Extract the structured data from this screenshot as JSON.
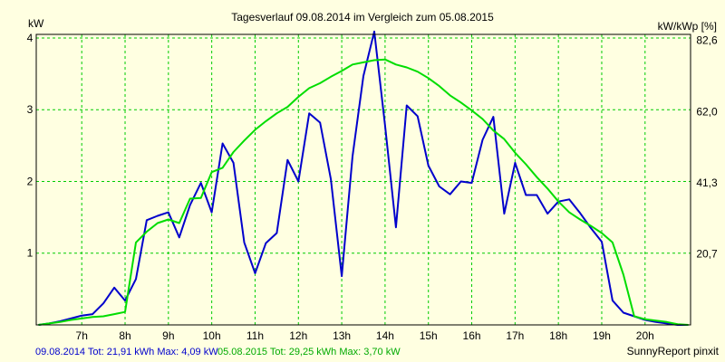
{
  "chart_data": {
    "type": "line",
    "title": "Tagesverlauf 09.08.2014 im Vergleich zum 05.08.2015",
    "ylabel_left": "kW",
    "ylabel_right": "kW/kWp [%]",
    "footer_right": "SunnyReport pinxit",
    "grid": true,
    "xlim": [
      5.95,
      21.05
    ],
    "ylim": [
      0,
      4.05
    ],
    "x_ticks": [
      7,
      8,
      9,
      10,
      11,
      12,
      13,
      14,
      15,
      16,
      17,
      18,
      19,
      20
    ],
    "x_tick_labels": [
      "7h",
      "8h",
      "9h",
      "10h",
      "11h",
      "12h",
      "13h",
      "14h",
      "15h",
      "16h",
      "17h",
      "18h",
      "19h",
      "20h"
    ],
    "left_ticks": [
      1,
      2,
      3,
      4
    ],
    "left_tick_labels": [
      "1",
      "2",
      "3",
      "4"
    ],
    "right_ticks": [
      0.99,
      1.98,
      2.97,
      3.97
    ],
    "right_tick_labels": [
      "20,7",
      "41,3",
      "62,0",
      "82,6"
    ],
    "series": [
      {
        "name": "09.08.2014",
        "color": "#0000cc",
        "summary": "09.08.2014 Tot: 21,91 kWh Max: 4,09 kW",
        "x": [
          6.0,
          6.25,
          6.5,
          6.75,
          7.0,
          7.25,
          7.5,
          7.75,
          8.0,
          8.25,
          8.5,
          8.75,
          9.0,
          9.25,
          9.5,
          9.75,
          10.0,
          10.25,
          10.5,
          10.75,
          11.0,
          11.25,
          11.5,
          11.75,
          12.0,
          12.25,
          12.5,
          12.75,
          13.0,
          13.25,
          13.5,
          13.75,
          14.0,
          14.25,
          14.5,
          14.75,
          15.0,
          15.25,
          15.5,
          15.75,
          16.0,
          16.25,
          16.5,
          16.75,
          17.0,
          17.25,
          17.5,
          17.75,
          18.0,
          18.25,
          18.5,
          18.75,
          19.0,
          19.25,
          19.5,
          19.75,
          20.0,
          20.25,
          20.5,
          20.75,
          21.0
        ],
        "values": [
          0.0,
          0.02,
          0.05,
          0.09,
          0.13,
          0.15,
          0.3,
          0.52,
          0.34,
          0.64,
          1.46,
          1.52,
          1.57,
          1.22,
          1.67,
          1.98,
          1.57,
          2.53,
          2.26,
          1.15,
          0.72,
          1.14,
          1.28,
          2.3,
          2.0,
          2.95,
          2.82,
          2.03,
          0.68,
          2.35,
          3.47,
          4.09,
          2.78,
          1.36,
          3.06,
          2.91,
          2.22,
          1.93,
          1.82,
          2.0,
          1.98,
          2.58,
          2.9,
          1.55,
          2.26,
          1.81,
          1.81,
          1.55,
          1.72,
          1.75,
          1.56,
          1.35,
          1.16,
          0.34,
          0.17,
          0.12,
          0.07,
          0.04,
          0.02,
          0.0,
          0.0
        ]
      },
      {
        "name": "05.08.2015",
        "color": "#00dd00",
        "summary": "05.08.2015 Tot: 29,25 kWh Max: 3,70 kW",
        "x": [
          6.0,
          6.25,
          6.5,
          6.75,
          7.0,
          7.25,
          7.5,
          7.75,
          8.0,
          8.25,
          8.5,
          8.75,
          9.0,
          9.25,
          9.5,
          9.75,
          10.0,
          10.25,
          10.5,
          10.75,
          11.0,
          11.25,
          11.5,
          11.75,
          12.0,
          12.25,
          12.5,
          12.75,
          13.0,
          13.25,
          13.5,
          13.75,
          14.0,
          14.25,
          14.5,
          14.75,
          15.0,
          15.25,
          15.5,
          15.75,
          16.0,
          16.25,
          16.5,
          16.75,
          17.0,
          17.25,
          17.5,
          17.75,
          18.0,
          18.25,
          18.5,
          18.75,
          19.0,
          19.25,
          19.5,
          19.75,
          20.0,
          20.25,
          20.5,
          20.75,
          21.0
        ],
        "values": [
          0.0,
          0.02,
          0.04,
          0.07,
          0.09,
          0.11,
          0.12,
          0.15,
          0.18,
          1.15,
          1.3,
          1.42,
          1.47,
          1.42,
          1.76,
          1.77,
          2.13,
          2.19,
          2.41,
          2.57,
          2.72,
          2.84,
          2.95,
          3.04,
          3.18,
          3.3,
          3.37,
          3.46,
          3.54,
          3.63,
          3.66,
          3.69,
          3.7,
          3.63,
          3.59,
          3.53,
          3.44,
          3.33,
          3.2,
          3.1,
          2.99,
          2.87,
          2.71,
          2.59,
          2.4,
          2.24,
          2.06,
          1.9,
          1.72,
          1.57,
          1.47,
          1.38,
          1.28,
          1.15,
          0.7,
          0.12,
          0.08,
          0.06,
          0.04,
          0.01,
          0.0
        ]
      }
    ]
  }
}
